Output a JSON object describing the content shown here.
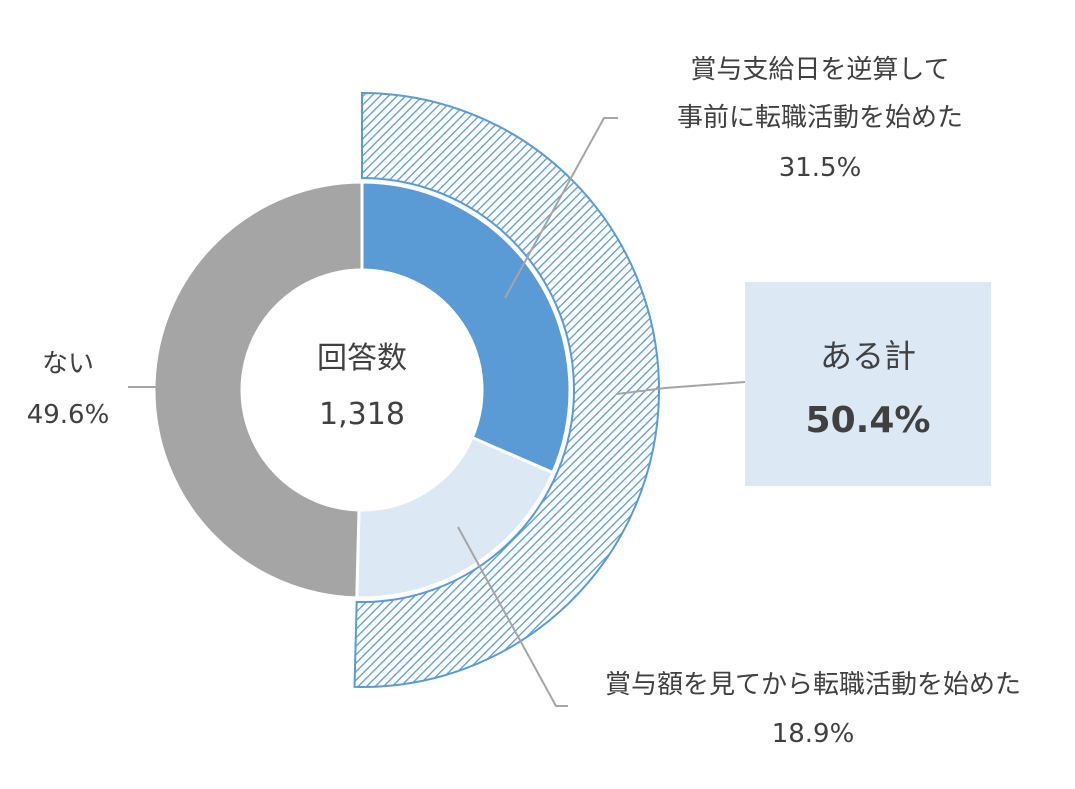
{
  "chart_data": {
    "type": "donut",
    "center": {
      "title": "回答数",
      "value": "1,318"
    },
    "inner_ring": {
      "slices": [
        {
          "name": "賞与支給日を逆算して事前に転職活動を始めた",
          "label_lines": [
            "賞与支給日を逆算して",
            "事前に転職活動を始めた"
          ],
          "value": 31.5,
          "value_label": "31.5%",
          "color": "#5b9bd5"
        },
        {
          "name": "賞与額を見てから転職活動を始めた",
          "label_lines": [
            "賞与額を見てから転職活動を始めた"
          ],
          "value": 18.9,
          "value_label": "18.9%",
          "color": "#dde8f5"
        },
        {
          "name": "ない",
          "label_lines": [
            "ない"
          ],
          "value": 49.6,
          "value_label": "49.6%",
          "color": "#a5a5a5"
        }
      ]
    },
    "outer_ring": {
      "name": "ある計",
      "value": 50.4,
      "value_label": "50.4%",
      "pattern": "diagonal-hatch",
      "color": "#5b9bd5"
    }
  }
}
